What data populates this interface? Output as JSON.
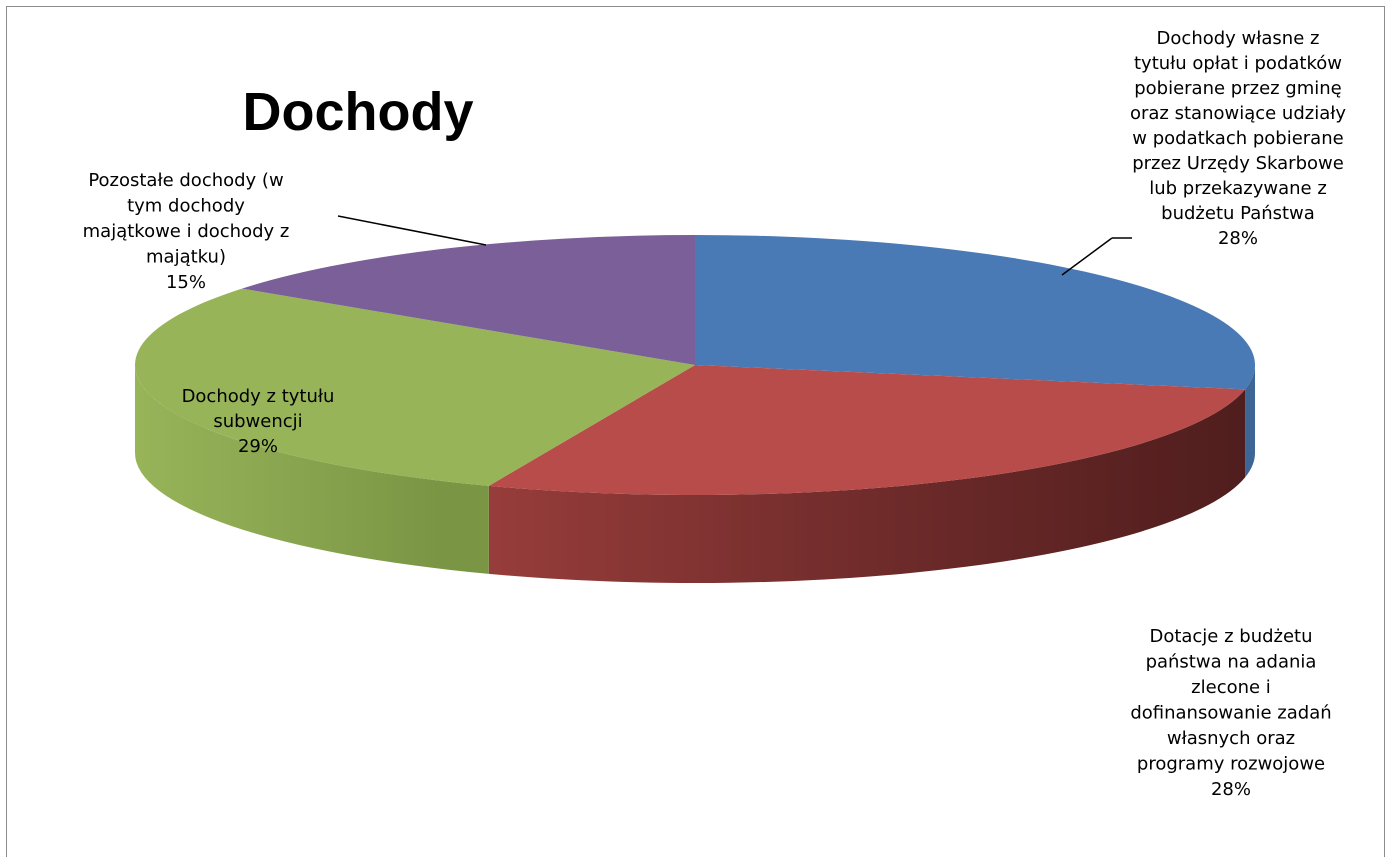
{
  "chart_data": {
    "type": "pie",
    "title": "Dochody",
    "style": "3d",
    "legend": "none",
    "slices": [
      {
        "label_lines": [
          "Dochody własne z",
          "tytułu opłat i podatków",
          "pobierane przez gminę",
          "oraz stanowiące udziały",
          "w podatkach pobierane",
          "przez Urzędy Skarbowe",
          "lub przekazywane z",
          "budżetu Państwa"
        ],
        "percent_label": "28%",
        "value": 28,
        "color": "#4a7ab5"
      },
      {
        "label_lines": [
          "Dotacje z budżetu",
          "państwa na adania",
          "zlecone i",
          "dofinansowanie zadań",
          "własnych oraz",
          "programy rozwojowe"
        ],
        "percent_label": "28%",
        "value": 28,
        "color": "#b84c4a"
      },
      {
        "label_lines": [
          "Dochody z tytułu",
          "subwencji"
        ],
        "percent_label": "29%",
        "value": 29,
        "color": "#98b459"
      },
      {
        "label_lines": [
          "Pozostałe dochody (w",
          "tym dochody",
          "majątkowe i dochody z",
          "majątku)"
        ],
        "percent_label": "15%",
        "value": 15,
        "color": "#7b5f98"
      }
    ]
  }
}
